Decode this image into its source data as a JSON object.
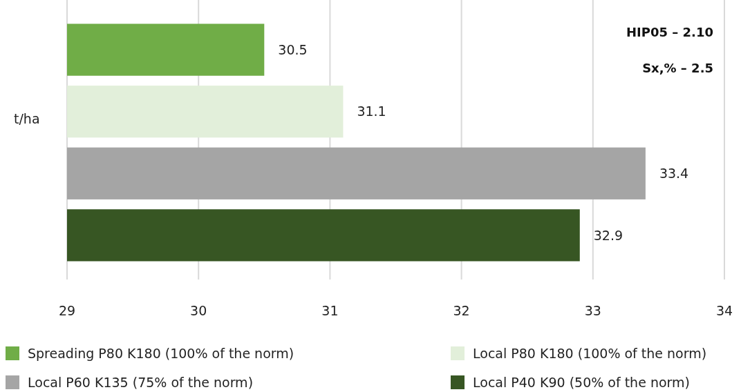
{
  "chart_data": {
    "type": "bar",
    "orientation": "horizontal",
    "ylabel": "t/ha",
    "categories": [
      null
    ],
    "series": [
      {
        "name": "Spreading P80 K180 (100% of the norm)",
        "color": "#70ad47",
        "values": [
          30.5
        ]
      },
      {
        "name": "Local P80 K180 (100% of the norm)",
        "color": "#e2efda",
        "values": [
          31.1
        ]
      },
      {
        "name": "Local P60 K135 (75% of the norm)",
        "color": "#a5a5a5",
        "values": [
          33.4
        ]
      },
      {
        "name": "Local P40 K90 (50% of the norm)",
        "color": "#375623",
        "values": [
          32.9
        ]
      }
    ],
    "xlim": [
      29,
      34
    ],
    "xticks": [
      29,
      30,
      31,
      32,
      33,
      34
    ],
    "grid": "x",
    "data_labels": true,
    "legend": "bottom",
    "annotations": [
      "HIP05 – 2.10",
      "Sx,% – 2.5"
    ]
  }
}
